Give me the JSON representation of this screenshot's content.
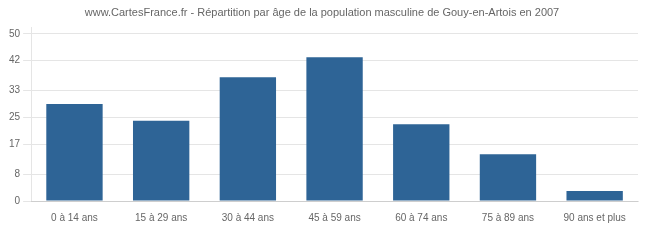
{
  "chart_data": {
    "type": "bar",
    "title": "www.CartesFrance.fr - Répartition par âge de la population masculine de Gouy-en-Artois en 2007",
    "categories": [
      "0 à 14 ans",
      "15 à 29 ans",
      "30 à 44 ans",
      "45 à 59 ans",
      "60 à 74 ans",
      "75 à 89 ans",
      "90 ans et plus"
    ],
    "values": [
      29,
      24,
      37,
      43,
      23,
      14,
      3
    ],
    "color": "#2e6496",
    "ylim": [
      0,
      52
    ],
    "yticks": [
      0,
      8,
      17,
      25,
      33,
      42,
      50
    ],
    "grid": true
  }
}
